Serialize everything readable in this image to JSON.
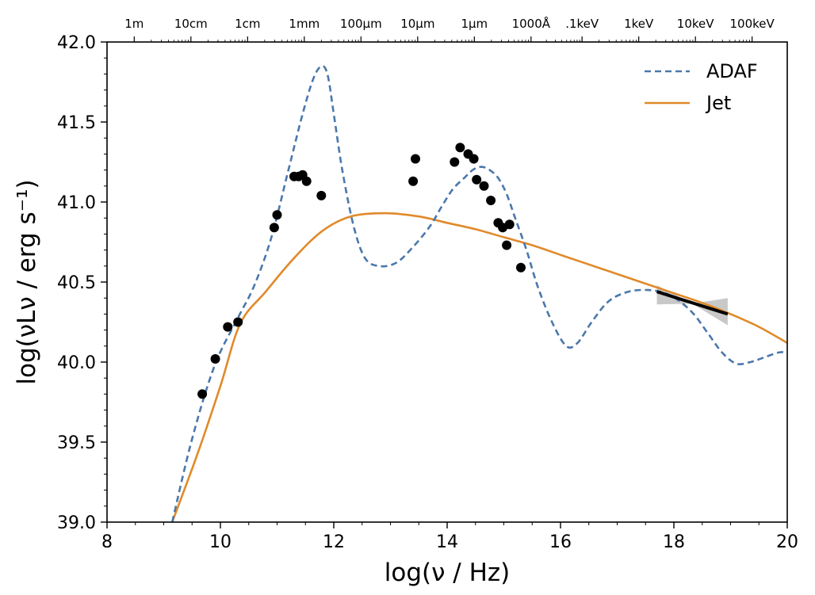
{
  "chart_data": {
    "type": "line",
    "xlabel": "log(ν / Hz)",
    "ylabel": "log(νLν / erg s⁻¹)",
    "xlim": [
      8,
      20
    ],
    "ylim": [
      39.0,
      42.0
    ],
    "x_ticks": [
      8,
      10,
      12,
      14,
      16,
      18,
      20
    ],
    "x_tick_labels": [
      "8",
      "10",
      "12",
      "14",
      "16",
      "18",
      "20"
    ],
    "y_ticks": [
      39.0,
      39.5,
      40.0,
      40.5,
      41.0,
      41.5,
      42.0
    ],
    "y_tick_labels": [
      "39.0",
      "39.5",
      "40.0",
      "40.5",
      "41.0",
      "41.5",
      "42.0"
    ],
    "top_axis": {
      "labels": [
        "1m",
        "10cm",
        "1cm",
        "1mm",
        "100μm",
        "10μm",
        "1μm",
        "1000Å",
        ".1keV",
        "1keV",
        "10keV",
        "100keV"
      ],
      "log_nu": [
        8.48,
        9.48,
        10.48,
        11.48,
        12.48,
        13.48,
        14.48,
        15.48,
        16.38,
        17.38,
        18.38,
        19.38
      ]
    },
    "legend": {
      "position": "top-right",
      "entries": [
        "ADAF",
        "Jet"
      ]
    },
    "series": [
      {
        "name": "ADAF",
        "style": "dashed",
        "color": "#4a78ac",
        "x": [
          9.15,
          9.5,
          9.9,
          10.3,
          10.6,
          10.9,
          11.2,
          11.45,
          11.65,
          11.8,
          11.9,
          12.0,
          12.15,
          12.35,
          12.55,
          12.8,
          13.1,
          13.4,
          13.7,
          13.9,
          14.1,
          14.3,
          14.45,
          14.6,
          14.75,
          14.9,
          15.05,
          15.2,
          15.4,
          15.6,
          15.85,
          16.1,
          16.3,
          16.55,
          16.85,
          17.2,
          17.55,
          17.85,
          18.1,
          18.35,
          18.6,
          18.85,
          19.1,
          19.35,
          19.6,
          19.85,
          20.0
        ],
        "values": [
          39.0,
          39.52,
          39.98,
          40.27,
          40.48,
          40.78,
          41.2,
          41.55,
          41.78,
          41.85,
          41.78,
          41.55,
          41.2,
          40.85,
          40.65,
          40.6,
          40.62,
          40.72,
          40.85,
          40.97,
          41.08,
          41.15,
          41.2,
          41.22,
          41.2,
          41.15,
          41.05,
          40.9,
          40.7,
          40.47,
          40.25,
          40.1,
          40.12,
          40.25,
          40.38,
          40.44,
          40.45,
          40.43,
          40.38,
          40.3,
          40.18,
          40.06,
          39.99,
          40.0,
          40.03,
          40.06,
          40.06
        ]
      },
      {
        "name": "Jet",
        "style": "solid",
        "color": "#e08a2a",
        "x": [
          9.15,
          9.6,
          10.0,
          10.35,
          10.8,
          11.3,
          11.8,
          12.3,
          12.9,
          13.5,
          14.0,
          14.5,
          15.0,
          15.5,
          16.0,
          16.5,
          17.0,
          17.5,
          18.0,
          18.5,
          19.0,
          19.5,
          20.0
        ],
        "values": [
          39.0,
          39.43,
          39.85,
          40.24,
          40.44,
          40.65,
          40.82,
          40.91,
          40.93,
          40.91,
          40.87,
          40.83,
          40.78,
          40.73,
          40.67,
          40.61,
          40.55,
          40.49,
          40.43,
          40.37,
          40.3,
          40.22,
          40.12
        ]
      }
    ],
    "observed_points": {
      "x": [
        9.68,
        9.91,
        10.13,
        10.31,
        10.95,
        11.0,
        11.3,
        11.38,
        11.45,
        11.52,
        11.78,
        13.4,
        13.44,
        14.13,
        14.23,
        14.37,
        14.47,
        14.52,
        14.65,
        14.77,
        14.9,
        14.98,
        15.05,
        15.1,
        15.3
      ],
      "values": [
        39.8,
        40.02,
        40.22,
        40.25,
        40.84,
        40.92,
        41.16,
        41.16,
        41.17,
        41.13,
        41.04,
        41.13,
        41.27,
        41.25,
        41.34,
        41.3,
        41.27,
        41.14,
        41.1,
        41.01,
        40.87,
        40.84,
        40.73,
        40.86,
        40.59
      ]
    },
    "xray_powerlaw": {
      "x": [
        17.7,
        18.95
      ],
      "values": [
        40.44,
        40.3
      ],
      "uncertainty_band": {
        "x": [
          17.7,
          18.95
        ],
        "upper": [
          40.48,
          40.4
        ],
        "lower": [
          40.36,
          40.23
        ]
      }
    }
  }
}
